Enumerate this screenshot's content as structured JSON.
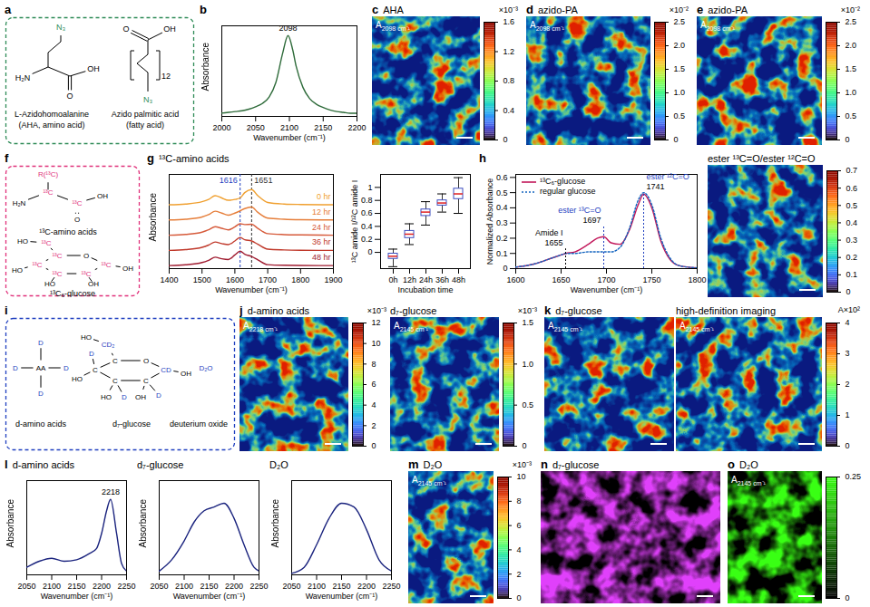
{
  "chart_data": [
    {
      "panel": "a",
      "type": "diagram",
      "color": "#2e8b57",
      "molecules": [
        {
          "name": [
            "L-Azidohomoalanine",
            "(AHA, amino acid)"
          ],
          "atoms": [
            "N₃",
            "H₂N",
            "OH",
            "O"
          ]
        },
        {
          "name": [
            "Azido palmitic acid",
            "(fatty acid)"
          ],
          "atoms": [
            "OH",
            "O",
            "12",
            "N₃"
          ]
        }
      ]
    },
    {
      "panel": "b",
      "type": "line",
      "x": [
        2000,
        2010,
        2020,
        2030,
        2040,
        2050,
        2060,
        2070,
        2080,
        2090,
        2098,
        2105,
        2110,
        2120,
        2130,
        2140,
        2150,
        2160,
        2170,
        2180,
        2190,
        2200
      ],
      "series": [
        {
          "color": "#2e6b3a",
          "values": [
            0.04,
            0.05,
            0.06,
            0.07,
            0.09,
            0.12,
            0.16,
            0.24,
            0.42,
            0.78,
            1.0,
            0.82,
            0.62,
            0.36,
            0.22,
            0.15,
            0.11,
            0.08,
            0.06,
            0.05,
            0.04,
            0.04
          ]
        }
      ],
      "xlim": [
        2000,
        2200
      ],
      "xticks": [
        2000,
        2050,
        2100,
        2150,
        2200
      ],
      "ylim": [
        0,
        1.12
      ],
      "tick_labels": "x",
      "x_label": "Wavenumber (cm⁻¹)",
      "y_label": "Absorbance",
      "annotations": [
        {
          "x": 2098,
          "y": 1.0,
          "text": "2098"
        }
      ]
    },
    {
      "panel": "c",
      "type": "image",
      "title": "AHA",
      "band": [
        "A",
        "2098 cm⁻¹"
      ],
      "color": "jet",
      "colorbar": {
        "lim": [
          0,
          1.6
        ],
        "ticks": [
          0,
          0.4,
          0.8,
          1.2,
          1.6
        ],
        "label": "×10⁻³"
      }
    },
    {
      "panel": "d",
      "type": "image",
      "title": "azido-PA",
      "band": [
        "A",
        "2098 cm⁻¹"
      ],
      "color": "jet",
      "colorbar": {
        "lim": [
          0,
          2.5
        ],
        "ticks": [
          0,
          0.5,
          {
            "value": 1,
            "label": "1.0"
          },
          1.5,
          {
            "value": 2,
            "label": "2.0"
          },
          2.5
        ],
        "label": "×10⁻²"
      }
    },
    {
      "panel": "e",
      "type": "image",
      "title": "azido-PA",
      "band": [
        "A",
        "2098 cm⁻¹"
      ],
      "color": "jet",
      "colorbar": {
        "lim": [
          0,
          2.5
        ],
        "ticks": [
          0,
          0.5,
          {
            "value": 1,
            "label": "1.0"
          },
          1.5,
          {
            "value": 2,
            "label": "2.0"
          },
          2.5
        ],
        "label": "×10⁻²"
      }
    },
    {
      "panel": "f",
      "type": "diagram",
      "color": "#e0307a",
      "molecules": [
        {
          "name": [
            "¹³C-amino acids"
          ],
          "atoms": [
            "R(¹³C)",
            "H₂N",
            "¹³C",
            "¹³C",
            "OH",
            "O"
          ]
        },
        {
          "name": [
            "¹³C₆-glucose"
          ],
          "atoms": [
            "O",
            "¹³C",
            "¹³C",
            "¹³C",
            "¹³C",
            "¹³C",
            "¹³C",
            "HO",
            "HO",
            "HO",
            "OH",
            "OH"
          ]
        }
      ]
    },
    {
      "panel": "g",
      "type": "line",
      "title": "¹³C-amino acids",
      "x": [
        1400,
        1450,
        1500,
        1520,
        1540,
        1560,
        1580,
        1600,
        1616,
        1630,
        1651,
        1670,
        1700,
        1750,
        1800,
        1900
      ],
      "series": [
        {
          "name": "0 hr",
          "color": "#f0a030",
          "values": [
            4.0,
            4.05,
            4.2,
            4.35,
            4.6,
            4.45,
            4.3,
            4.35,
            4.45,
            4.8,
            5.0,
            4.6,
            4.15,
            4.05,
            4.02,
            4.0
          ]
        },
        {
          "name": "12 hr",
          "color": "#e67e3a",
          "values": [
            3.0,
            3.05,
            3.2,
            3.35,
            3.58,
            3.45,
            3.32,
            3.45,
            3.6,
            3.75,
            3.85,
            3.5,
            3.12,
            3.05,
            3.02,
            3.0
          ]
        },
        {
          "name": "24 hr",
          "color": "#d65a3a",
          "values": [
            2.0,
            2.05,
            2.2,
            2.35,
            2.56,
            2.45,
            2.35,
            2.55,
            2.75,
            2.7,
            2.72,
            2.45,
            2.1,
            2.04,
            2.02,
            2.0
          ]
        },
        {
          "name": "36 hr",
          "color": "#c0392b",
          "values": [
            1.0,
            1.05,
            1.2,
            1.35,
            1.55,
            1.45,
            1.38,
            1.62,
            1.85,
            1.7,
            1.62,
            1.4,
            1.08,
            1.03,
            1.01,
            1.0
          ]
        },
        {
          "name": "48 hr",
          "color": "#a01c30",
          "values": [
            0.0,
            0.05,
            0.2,
            0.35,
            0.55,
            0.45,
            0.4,
            0.7,
            0.95,
            0.75,
            0.6,
            0.38,
            0.06,
            0.02,
            0.01,
            0.0
          ]
        }
      ],
      "xlim": [
        1400,
        1900
      ],
      "xticks": [
        1400,
        1500,
        1600,
        1700,
        1800,
        1900
      ],
      "ylim": [
        -0.2,
        6.0
      ],
      "tick_labels": "x",
      "x_label": "Wavenumber (cm⁻¹)",
      "y_label": "Absorbance",
      "markers": [
        {
          "x": 1616,
          "text": "1616",
          "color": "#1f3fbf"
        },
        {
          "x": 1651,
          "text": "1651",
          "color": "#333333"
        }
      ]
    },
    {
      "type": "box",
      "categories": [
        "0h",
        "12h",
        "24h",
        "36h",
        "48h"
      ],
      "boxes": [
        {
          "min": -0.22,
          "q1": -0.1,
          "median": -0.06,
          "q3": -0.02,
          "max": 0.05
        },
        {
          "min": 0.12,
          "q1": 0.22,
          "median": 0.28,
          "q3": 0.33,
          "max": 0.44
        },
        {
          "min": 0.42,
          "q1": 0.56,
          "median": 0.62,
          "q3": 0.66,
          "max": 0.78
        },
        {
          "min": 0.62,
          "q1": 0.72,
          "median": 0.76,
          "q3": 0.8,
          "max": 0.9
        },
        {
          "min": 0.6,
          "q1": 0.82,
          "median": 0.9,
          "q3": 0.98,
          "max": 1.15
        }
      ],
      "ylim": [
        -0.25,
        1.2
      ],
      "yticks": [
        0,
        0.2,
        0.4,
        0.6,
        0.8,
        1
      ],
      "color": "#3b4cc0",
      "x_label": "Incubation time",
      "y_label": "¹³C amide I/¹²C amide I"
    },
    {
      "panel": "h",
      "type": "line",
      "x": [
        1600,
        1620,
        1640,
        1650,
        1655,
        1665,
        1680,
        1690,
        1697,
        1705,
        1715,
        1725,
        1735,
        1741,
        1750,
        1760,
        1770,
        1780,
        1800
      ],
      "series": [
        {
          "name": "¹³C₆-glucose",
          "color": "#c2185b",
          "line_style": "solid",
          "values": [
            0.01,
            0.03,
            0.07,
            0.09,
            0.1,
            0.11,
            0.16,
            0.2,
            0.21,
            0.17,
            0.16,
            0.25,
            0.42,
            0.49,
            0.4,
            0.18,
            0.06,
            0.02,
            0.005
          ]
        },
        {
          "name": "regular glucose",
          "color": "#1565c0",
          "line_style": "dotted",
          "values": [
            0.01,
            0.03,
            0.07,
            0.09,
            0.1,
            0.1,
            0.11,
            0.11,
            0.11,
            0.11,
            0.14,
            0.26,
            0.45,
            0.5,
            0.42,
            0.2,
            0.07,
            0.02,
            0.005
          ]
        }
      ],
      "xlim": [
        1600,
        1800
      ],
      "xticks": [
        1600,
        1650,
        1700,
        1750,
        1800
      ],
      "ylim": [
        0,
        0.62
      ],
      "yticks": [
        0,
        0.1,
        0.2,
        0.3,
        0.4,
        0.5,
        0.6
      ],
      "x_label": "Wavenumber (cm⁻¹)",
      "y_label": "Normalized Absorbance",
      "legend": "top-left",
      "annotations": [
        {
          "x": 1655,
          "y": 0.13,
          "text": "1655",
          "label": "Amide I",
          "color": "#000000"
        },
        {
          "x": 1697,
          "y": 0.28,
          "text": "1697",
          "label": "ester ¹³C=O",
          "color": "#1f3fbf"
        },
        {
          "x": 1741,
          "y": 0.5,
          "text": "1741",
          "label": "ester ¹²C=O",
          "color": "#1f3fbf"
        }
      ]
    },
    {
      "type": "image",
      "title": "ester ¹³C=O/ester ¹²C=O",
      "color": "jet",
      "colorbar": {
        "lim": [
          0,
          0.7
        ],
        "ticks": [
          0,
          0.1,
          0.2,
          0.3,
          0.4,
          0.5,
          0.6,
          0.7
        ]
      }
    },
    {
      "panel": "i",
      "type": "diagram",
      "color": "#1f3fbf",
      "molecules": [
        {
          "name": [
            "d-amino acids"
          ],
          "atoms": [
            "AA",
            "D",
            "D",
            "D",
            "D"
          ]
        },
        {
          "name": [
            "d₇-glucose"
          ],
          "atoms": [
            "O",
            "C",
            "C",
            "C",
            "C",
            "CD",
            "CD₂",
            "HO",
            "HO",
            "HO",
            "OH",
            "OH",
            "D",
            "D",
            "D"
          ]
        },
        {
          "name": [
            "deuterium oxide"
          ],
          "atoms": [
            "D₂O"
          ]
        }
      ]
    },
    {
      "panel": "j",
      "type": "image",
      "title": "d-amino acids",
      "band": [
        "A",
        "2218 cm⁻¹"
      ],
      "color": "jet",
      "colorbar": {
        "lim": [
          0,
          12
        ],
        "ticks": [
          0,
          2,
          4,
          6,
          8,
          10,
          12
        ],
        "label": "×10⁻³"
      }
    },
    {
      "type": "image",
      "title": "d₇-glucose",
      "band": [
        "A",
        "2145 cm⁻¹"
      ],
      "color": "jet",
      "colorbar": {
        "lim": [
          0,
          1.5
        ],
        "ticks": [
          0,
          0.5,
          {
            "value": 1,
            "label": "1.0"
          },
          1.5
        ],
        "label": "×10⁻³"
      }
    },
    {
      "panel": "k",
      "type": "image",
      "title": "d₇-glucose",
      "band": [
        "A",
        "2145 cm⁻¹"
      ],
      "color": "jet"
    },
    {
      "type": "image",
      "title": "high-definition imaging",
      "band": [
        "A",
        "2145 cm⁻¹"
      ],
      "color": "jet",
      "colorbar": {
        "lim": [
          0,
          4
        ],
        "ticks": [
          0,
          1,
          2,
          3,
          4
        ],
        "label": "A×10²"
      }
    },
    {
      "panel": "l",
      "type": "line",
      "title": "d-amino acids",
      "x": [
        2050,
        2075,
        2100,
        2125,
        2150,
        2175,
        2190,
        2200,
        2210,
        2218,
        2230,
        2240,
        2250
      ],
      "series": [
        {
          "color": "#1a237e",
          "values": [
            0.1,
            0.18,
            0.22,
            0.18,
            0.2,
            0.28,
            0.35,
            0.55,
            0.85,
            1.0,
            0.55,
            0.15,
            0.05
          ]
        }
      ],
      "xlim": [
        2050,
        2250
      ],
      "xticks": [
        2050,
        2100,
        2150,
        2200,
        2250
      ],
      "ylim": [
        0,
        1.25
      ],
      "tick_labels": "x",
      "x_label": "Wavenumber (cm⁻¹)",
      "y_label": "Absorbance",
      "annotations": [
        {
          "x": 2218,
          "y": 1.0,
          "text": "2218"
        }
      ]
    },
    {
      "type": "line",
      "title": "d₇-glucose",
      "x": [
        2050,
        2075,
        2100,
        2120,
        2140,
        2160,
        2180,
        2200,
        2220,
        2240,
        2250
      ],
      "series": [
        {
          "color": "#1a237e",
          "values": [
            0.05,
            0.2,
            0.45,
            0.7,
            0.85,
            0.9,
            0.95,
            0.75,
            0.4,
            0.1,
            0.05
          ]
        }
      ],
      "xlim": [
        2050,
        2250
      ],
      "xticks": [
        2050,
        2100,
        2150,
        2200,
        2250
      ],
      "ylim": [
        0,
        1.25
      ],
      "tick_labels": "x",
      "x_label": "Wavenumber (cm⁻¹)",
      "y_label": "Absorbance"
    },
    {
      "type": "line",
      "title": "D₂O",
      "x": [
        2050,
        2075,
        2100,
        2125,
        2150,
        2175,
        2200,
        2225,
        2250
      ],
      "series": [
        {
          "color": "#1a237e",
          "values": [
            0.02,
            0.1,
            0.4,
            0.75,
            0.95,
            0.9,
            0.6,
            0.2,
            0.05
          ]
        }
      ],
      "xlim": [
        2050,
        2250
      ],
      "xticks": [
        2050,
        2100,
        2150,
        2200,
        2250
      ],
      "ylim": [
        0,
        1.25
      ],
      "tick_labels": "x",
      "x_label": "Wavenumber (cm⁻¹)",
      "y_label": "Absorbance"
    },
    {
      "panel": "m",
      "type": "image",
      "title": "D₂O",
      "band": [
        "A",
        "2145 cm⁻¹"
      ],
      "color": "jet",
      "colorbar": {
        "lim": [
          0,
          10
        ],
        "ticks": [
          0,
          2,
          4,
          6,
          8,
          10
        ],
        "label": "×10⁻³"
      }
    },
    {
      "panel": "n",
      "type": "image",
      "title": "d₇-glucose",
      "color": "#e040fb"
    },
    {
      "panel": "o",
      "type": "image",
      "title": "D₂O",
      "band": [
        "A",
        "2145 cm⁻¹"
      ],
      "color": "#39ff14",
      "colorbar": {
        "lim": [
          0,
          0.25
        ],
        "ticks": [
          0,
          0.25
        ]
      }
    }
  ]
}
